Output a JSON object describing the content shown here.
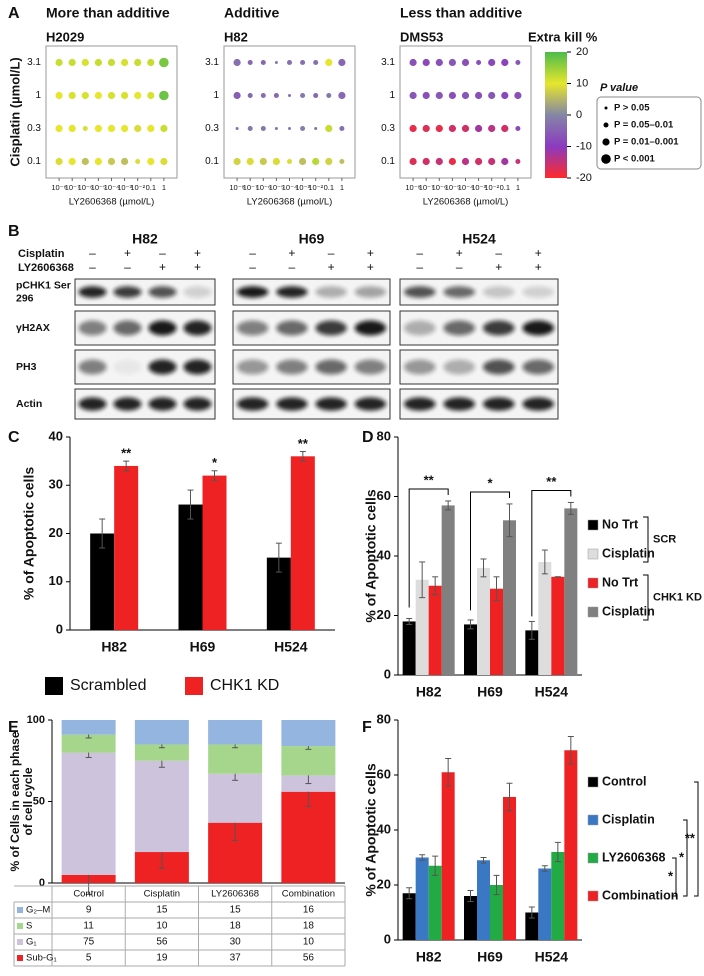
{
  "figure_labels": [
    "A",
    "B",
    "C",
    "D",
    "E",
    "F"
  ],
  "color_scale": {
    "title": "Extra kill %",
    "zlim": [
      -20,
      20
    ],
    "zticks": [
      20,
      10,
      0,
      -10,
      -20
    ],
    "colors": [
      "#ff2a2a",
      "#8b3ac0",
      "#8486a6",
      "#e6e62c",
      "#4cbb4c"
    ]
  },
  "p_legend": {
    "title": "P value",
    "entries": [
      "P > 0.05",
      "P = 0.05–0.01",
      "P = 0.01–0.001",
      "P < 0.001"
    ]
  },
  "blot": {
    "cell_lines": [
      "H82",
      "H69",
      "H524"
    ],
    "treatments": [
      {
        "name": "Cisplatin",
        "signs": [
          "–",
          "+",
          "–",
          "+"
        ]
      },
      {
        "name": "LY2606368",
        "signs": [
          "–",
          "–",
          "+",
          "+"
        ]
      }
    ],
    "rows": [
      [
        "pCHK1 Ser",
        "296"
      ],
      [
        "γH2AX"
      ],
      [
        "PH3"
      ],
      [
        "Actin"
      ]
    ]
  },
  "chart_data": [
    {
      "type": "dotmatrix",
      "title": "More than additive",
      "subtitle": "H2029",
      "x_label": "LY2606368 (µmol/L)",
      "y_label": "Cisplatin (µmol/L)",
      "xscale": "log",
      "xlim": [
        1e-09,
        10
      ],
      "xticks": [
        {
          "value": 1e-08,
          "label": "10⁻⁸"
        },
        {
          "value": 1e-07,
          "label": "10⁻⁷"
        },
        {
          "value": 1e-06,
          "label": "10⁻⁶"
        },
        {
          "value": 1e-05,
          "label": "10⁻⁵"
        },
        {
          "value": 0.0001,
          "label": "10⁻⁴"
        },
        {
          "value": 0.001,
          "label": "10⁻³"
        },
        {
          "value": 0.01,
          "label": "10⁻²"
        },
        0.1,
        1
      ],
      "x": [
        1e-08,
        1e-07,
        1e-06,
        1e-05,
        0.0001,
        0.001,
        0.01,
        0.1,
        1
      ],
      "categories": [
        "3.1",
        "1",
        "0.3",
        "0.1"
      ],
      "values": [
        [
          12,
          12,
          11,
          12,
          12,
          11,
          12,
          12,
          17
        ],
        [
          10,
          11,
          11,
          10,
          11,
          11,
          10,
          11,
          18
        ],
        [
          10,
          10,
          9,
          10,
          10,
          10,
          9,
          10,
          12
        ],
        [
          9,
          10,
          6,
          10,
          7,
          6,
          9,
          10,
          9
        ]
      ],
      "p_class": [
        [
          2,
          2,
          2,
          2,
          2,
          2,
          2,
          2,
          3
        ],
        [
          2,
          2,
          2,
          2,
          2,
          2,
          2,
          2,
          3
        ],
        [
          2,
          2,
          1,
          2,
          2,
          2,
          2,
          2,
          2
        ],
        [
          2,
          2,
          2,
          2,
          2,
          2,
          1,
          2,
          2
        ]
      ]
    },
    {
      "type": "dotmatrix",
      "title": "Additive",
      "subtitle": "H82",
      "x_label": "LY2606368 (µmol/L)",
      "xscale": "log",
      "xlim": [
        1e-09,
        10
      ],
      "xticks": [
        {
          "value": 1e-08,
          "label": "10⁻⁸"
        },
        {
          "value": 1e-07,
          "label": "10⁻⁷"
        },
        {
          "value": 1e-06,
          "label": "10⁻⁶"
        },
        {
          "value": 1e-05,
          "label": "10⁻⁵"
        },
        {
          "value": 0.0001,
          "label": "10⁻⁴"
        },
        {
          "value": 0.001,
          "label": "10⁻³"
        },
        {
          "value": 0.01,
          "label": "10⁻²"
        },
        0.1,
        1
      ],
      "x": [
        1e-08,
        1e-07,
        1e-06,
        1e-05,
        0.0001,
        0.001,
        0.01,
        0.1,
        1
      ],
      "categories": [
        "3.1",
        "1",
        "0.3",
        "0.1"
      ],
      "values": [
        [
          -3,
          -4,
          -4,
          -2,
          -3,
          -3,
          -3,
          10,
          -4
        ],
        [
          -5,
          -4,
          -3,
          -4,
          -3,
          -2,
          -4,
          -2,
          -4
        ],
        [
          -3,
          -2,
          -2,
          -3,
          -2,
          -1,
          -3,
          12,
          -3
        ],
        [
          8,
          9,
          7,
          9,
          9,
          6,
          13,
          8,
          6
        ]
      ],
      "p_class": [
        [
          2,
          1,
          1,
          0,
          1,
          1,
          1,
          2,
          2
        ],
        [
          2,
          1,
          1,
          1,
          0,
          1,
          1,
          1,
          2
        ],
        [
          0,
          1,
          1,
          0,
          0,
          1,
          0,
          2,
          1
        ],
        [
          2,
          2,
          2,
          2,
          1,
          2,
          2,
          2,
          1
        ]
      ]
    },
    {
      "type": "dotmatrix",
      "title": "Less than additive",
      "subtitle": "DMS53",
      "x_label": "LY2606368 (µmol/L)",
      "xscale": "log",
      "xlim": [
        1e-09,
        10
      ],
      "xticks": [
        {
          "value": 1e-08,
          "label": "10⁻⁸"
        },
        {
          "value": 1e-07,
          "label": "10⁻⁷"
        },
        {
          "value": 1e-06,
          "label": "10⁻⁶"
        },
        {
          "value": 1e-05,
          "label": "10⁻⁵"
        },
        {
          "value": 0.0001,
          "label": "10⁻⁴"
        },
        {
          "value": 0.001,
          "label": "10⁻³"
        },
        {
          "value": 0.01,
          "label": "10⁻²"
        },
        0.1,
        1
      ],
      "x": [
        1e-08,
        1e-07,
        1e-06,
        1e-05,
        0.0001,
        0.001,
        0.01,
        0.1,
        1
      ],
      "categories": [
        "3.1",
        "1",
        "0.3",
        "0.1"
      ],
      "values": [
        [
          -7,
          -8,
          -7,
          -6,
          -7,
          -7,
          -8,
          -9,
          -6
        ],
        [
          -6,
          -7,
          -6,
          -7,
          -6,
          -7,
          -6,
          -8,
          -7
        ],
        [
          -18,
          -17,
          -18,
          -16,
          -16,
          -12,
          -14,
          -16,
          -8
        ],
        [
          -17,
          -16,
          -15,
          -18,
          -14,
          -16,
          -15,
          -12,
          -15
        ]
      ],
      "p_class": [
        [
          2,
          2,
          2,
          2,
          2,
          1,
          2,
          2,
          1
        ],
        [
          2,
          2,
          2,
          2,
          2,
          2,
          2,
          2,
          2
        ],
        [
          2,
          2,
          2,
          2,
          2,
          2,
          2,
          2,
          1
        ],
        [
          2,
          2,
          2,
          2,
          2,
          2,
          2,
          2,
          1
        ]
      ]
    },
    {
      "type": "bar",
      "y_label": "% of Apoptotic cells",
      "categories": [
        "H82",
        "H69",
        "H524"
      ],
      "ylim": [
        0,
        40
      ],
      "yticks": [
        0,
        10,
        20,
        30,
        40
      ],
      "series": [
        {
          "name": "Scrambled",
          "color": "#000000",
          "values": [
            20,
            26,
            15
          ],
          "errors": [
            3,
            3,
            3
          ]
        },
        {
          "name": "CHK1 KD",
          "color": "#ee2222",
          "values": [
            34,
            32,
            36
          ],
          "errors": [
            1,
            1,
            1
          ]
        }
      ],
      "annotations": [
        "**",
        "*",
        "**"
      ],
      "legend": "bottom"
    },
    {
      "type": "bar",
      "y_label": "% of Apoptotic cells",
      "categories": [
        "H82",
        "H69",
        "H524"
      ],
      "ylim": [
        0,
        80
      ],
      "yticks": [
        0,
        20,
        40,
        60,
        80
      ],
      "series": [
        {
          "name": "No Trt",
          "color": "#000000",
          "values": [
            18,
            17,
            15
          ],
          "errors": [
            1,
            1.5,
            3
          ]
        },
        {
          "name": "Cisplatin",
          "color": "#dddddd",
          "values": [
            32,
            36,
            38
          ],
          "errors": [
            6,
            3,
            4
          ]
        },
        {
          "name": "No Trt",
          "color": "#ee2222",
          "values": [
            30,
            29,
            33
          ],
          "errors": [
            3,
            4,
            0
          ]
        },
        {
          "name": "Cisplatin",
          "color": "#808080",
          "values": [
            57,
            52,
            56
          ],
          "errors": [
            1.5,
            5.5,
            2
          ]
        }
      ],
      "annotations": [
        "**",
        "*",
        "**"
      ],
      "legend_groups": [
        "SCR",
        "CHK1 KD"
      ],
      "legend": "right"
    },
    {
      "type": "stacked_bar",
      "y_label": [
        "% of Cells in each phase",
        "of cell cycle"
      ],
      "categories": [
        "Control",
        "Cisplatin",
        "LY2606368",
        "Combination"
      ],
      "ylim": [
        0,
        100
      ],
      "yticks": [
        0,
        50,
        100
      ],
      "series": [
        {
          "name": "Sub-G₁",
          "color": "#ee2222",
          "values": [
            5,
            19,
            37,
            56
          ],
          "errors": [
            12,
            10,
            11,
            9
          ]
        },
        {
          "name": "G₁",
          "color": "#cdc3dd",
          "values": [
            75,
            56,
            30,
            10
          ],
          "errors": [
            3,
            4,
            4,
            5
          ]
        },
        {
          "name": "S",
          "color": "#a6d68c",
          "values": [
            11,
            10,
            18,
            18
          ],
          "errors": [
            2,
            2,
            2,
            2
          ]
        },
        {
          "name": "G₂–M",
          "color": "#93b5e0",
          "values": [
            9,
            15,
            15,
            16
          ]
        }
      ]
    },
    {
      "type": "bar",
      "y_label": "% of Apoptotic cells",
      "categories": [
        "H82",
        "H69",
        "H524"
      ],
      "ylim": [
        0,
        80
      ],
      "yticks": [
        0,
        20,
        40,
        60,
        80
      ],
      "series": [
        {
          "name": "Control",
          "color": "#000000",
          "values": [
            17,
            16,
            10
          ],
          "errors": [
            2,
            2,
            2
          ]
        },
        {
          "name": "Cisplatin",
          "color": "#3b78c4",
          "values": [
            30,
            29,
            26
          ],
          "errors": [
            1,
            1,
            1
          ]
        },
        {
          "name": "LY2606368",
          "color": "#22aa44",
          "values": [
            27,
            20,
            32
          ],
          "errors": [
            3.5,
            3.5,
            3.5
          ]
        },
        {
          "name": "Combination",
          "color": "#ee2222",
          "values": [
            61,
            52,
            69
          ],
          "errors": [
            5,
            5,
            5
          ]
        }
      ],
      "annotations": [
        "*",
        "*",
        "**"
      ],
      "legend": "right"
    }
  ]
}
